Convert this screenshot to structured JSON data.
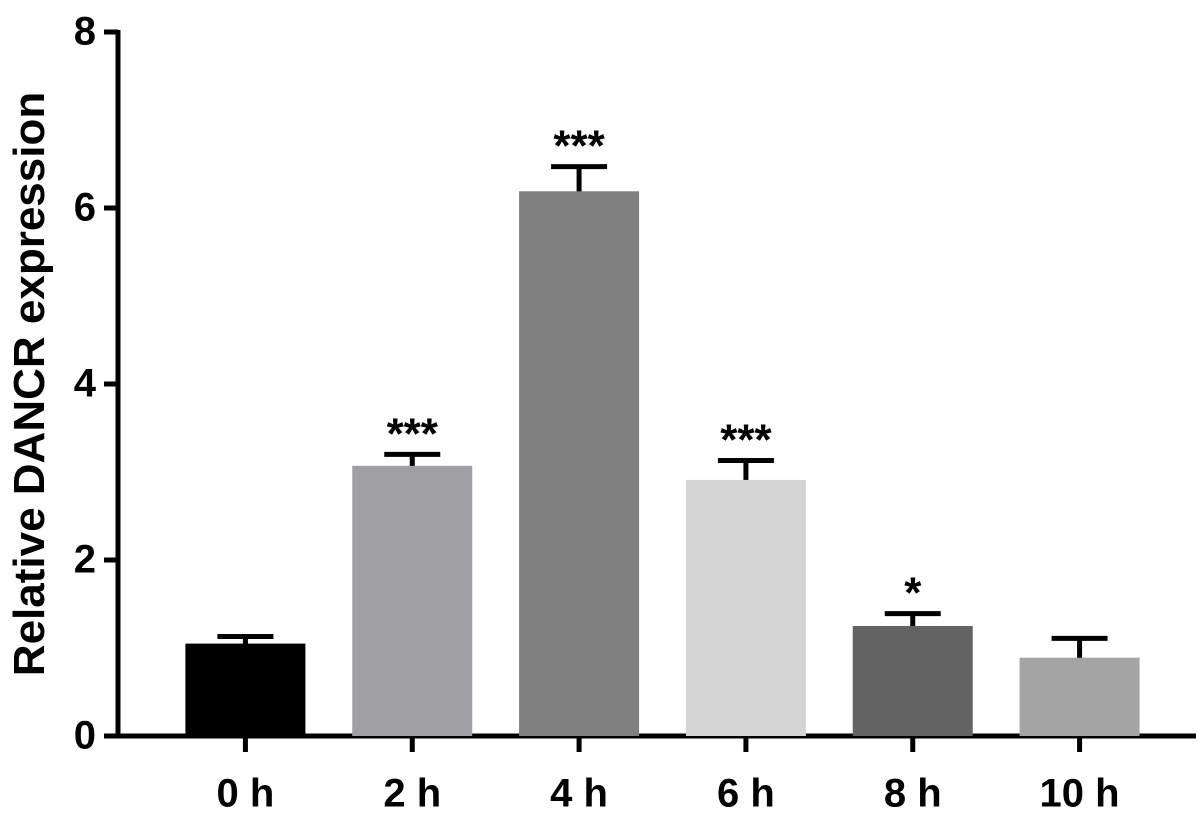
{
  "chart_data": {
    "type": "bar",
    "y_label": "Relative DANCR expression",
    "categories": [
      "0 h",
      "2 h",
      "4 h",
      "6 h",
      "8 h",
      "10 h"
    ],
    "values": [
      1.05,
      3.07,
      6.19,
      2.91,
      1.25,
      0.89
    ],
    "errors": [
      0.08,
      0.13,
      0.28,
      0.22,
      0.14,
      0.22
    ],
    "colors": [
      "#000000",
      "#a0a0a4",
      "#808080",
      "#d4d4d4",
      "#636363",
      "#a4a4a4"
    ],
    "annotations": [
      null,
      "***",
      "***",
      "***",
      "*",
      null
    ],
    "ylim": [
      0,
      8
    ],
    "yticks": [
      0,
      2,
      4,
      6,
      8
    ]
  }
}
